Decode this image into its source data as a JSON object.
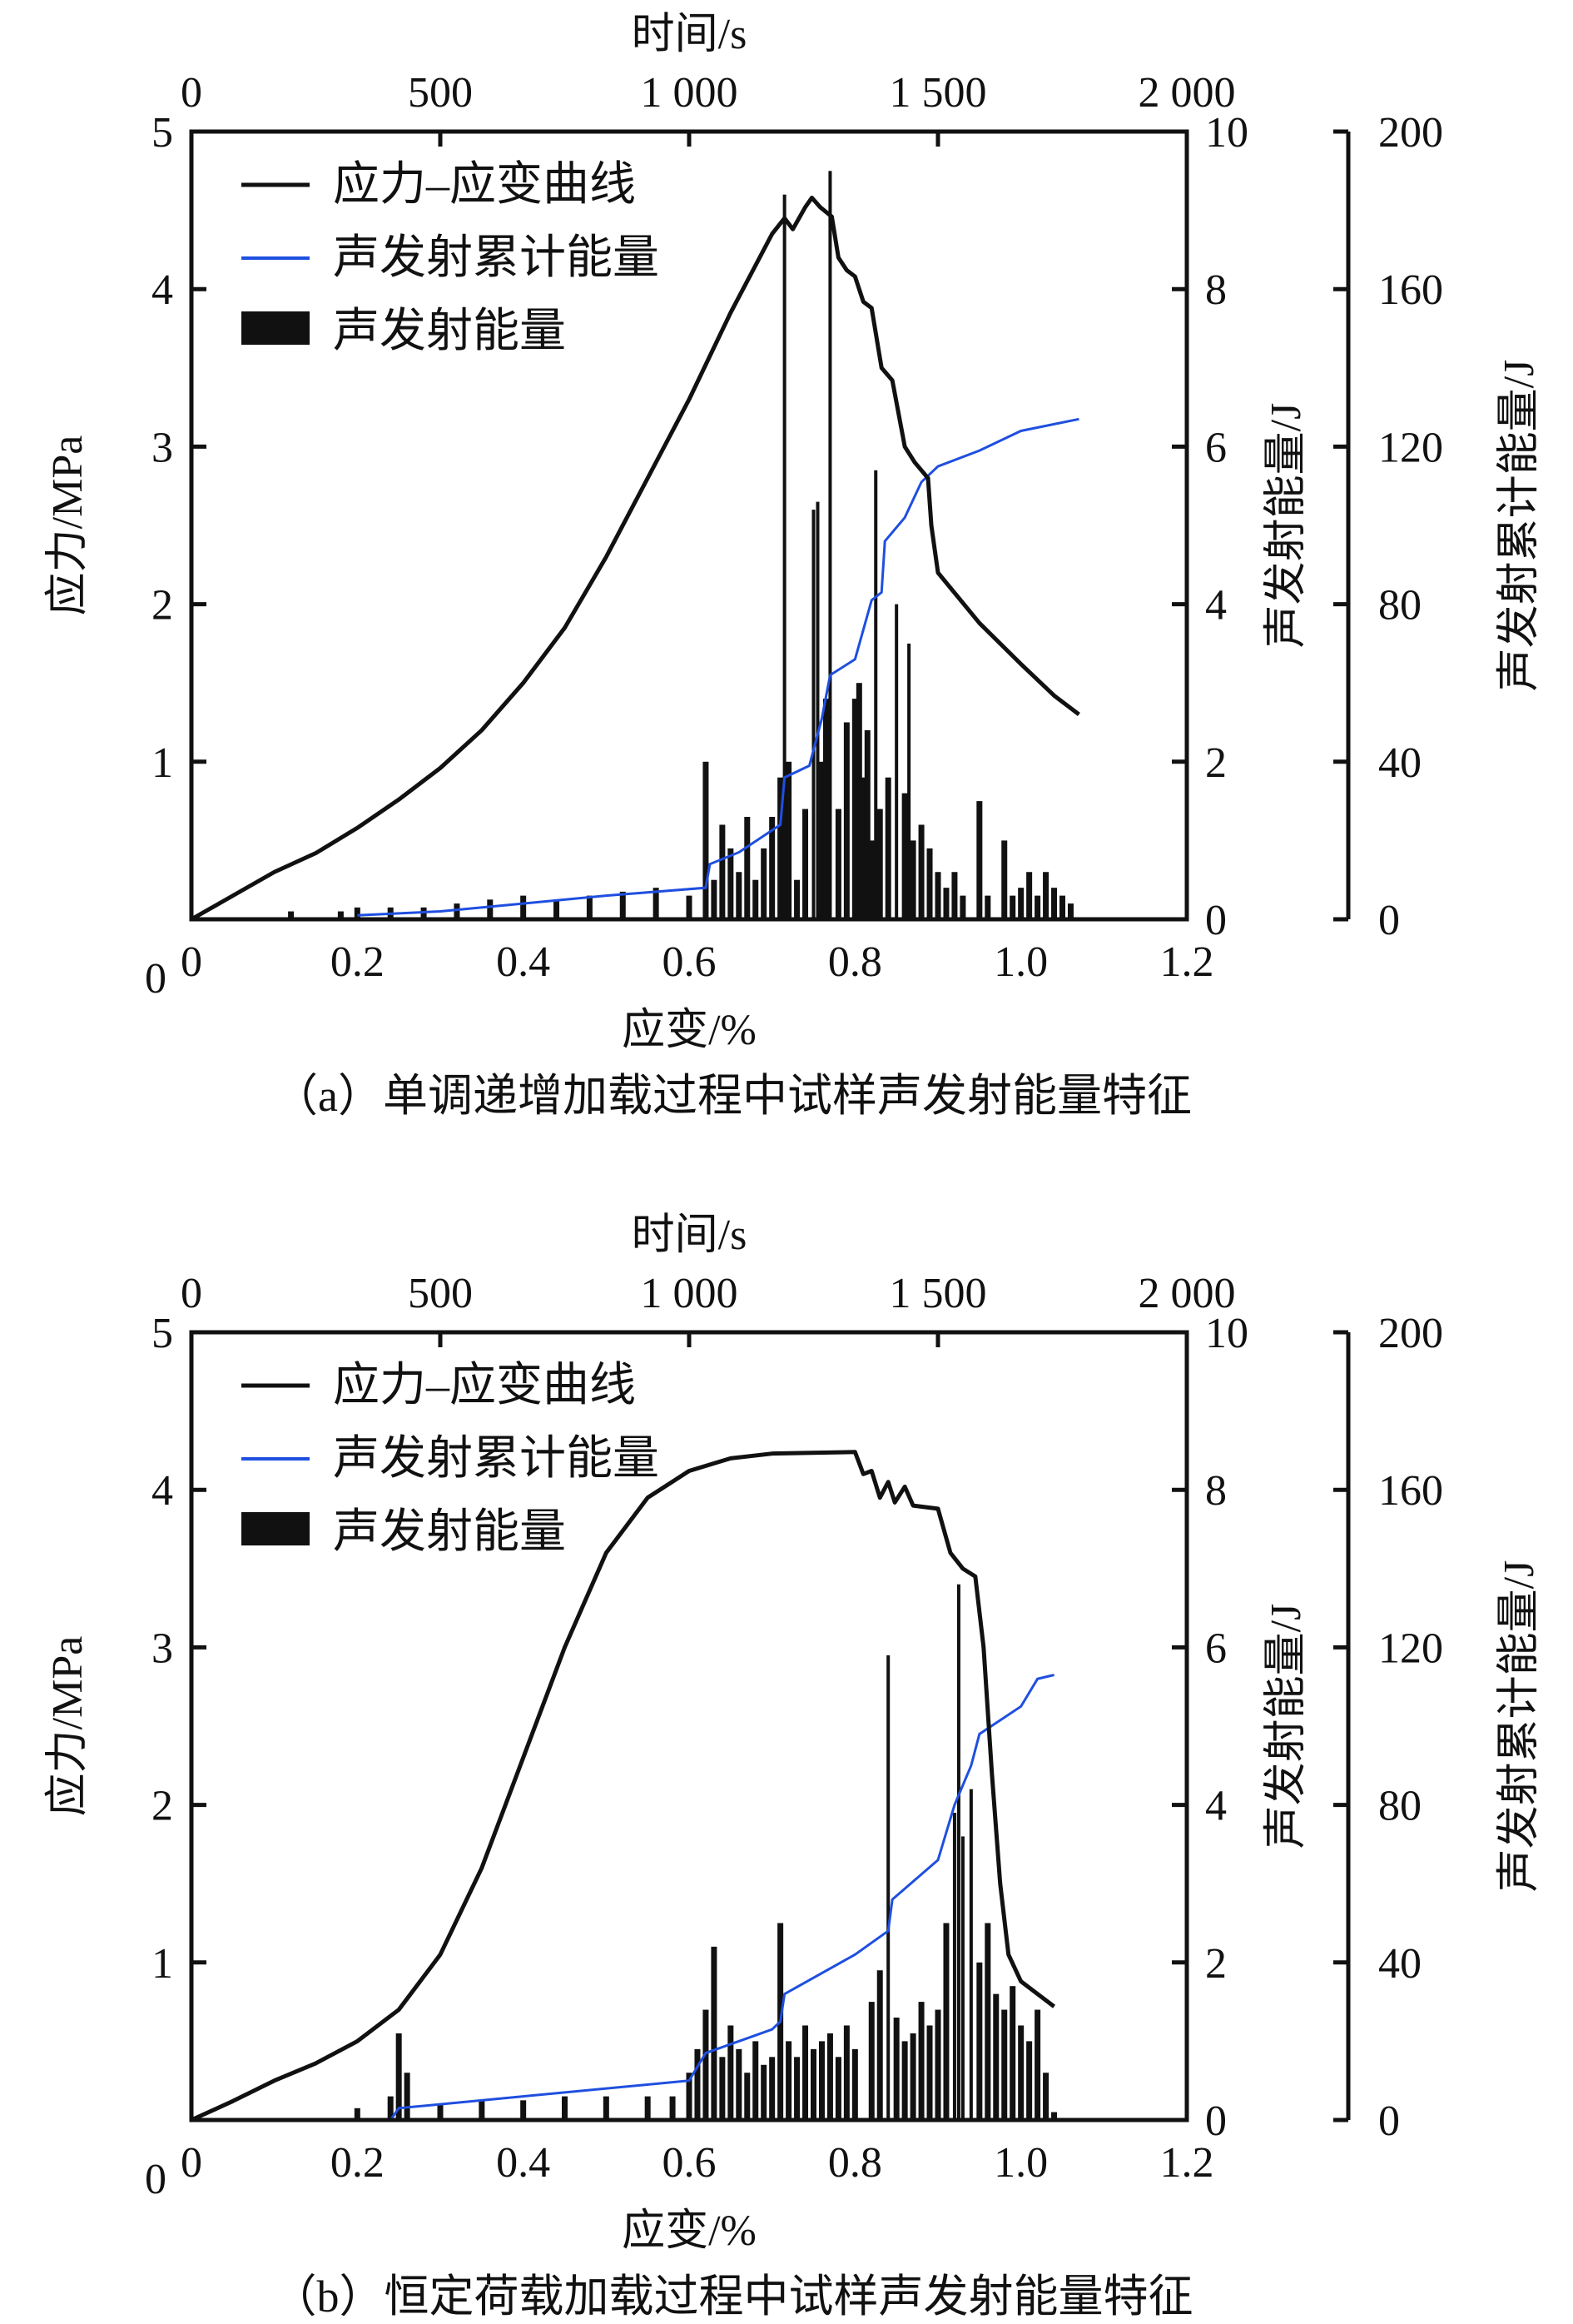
{
  "chart_data": [
    {
      "type": "line+bar",
      "caption": "（a）单调递增加载过程中试样声发射能量特征",
      "xlabel": "应变/%",
      "x2label": "时间/s",
      "ylabel": "应力/MPa",
      "y2label": "声发射能量/J",
      "y3label": "声发射累计能量/J",
      "xlim": [
        0,
        1.2
      ],
      "x2lim": [
        0,
        2000
      ],
      "ylim": [
        0,
        5
      ],
      "y2lim": [
        0,
        10
      ],
      "y3lim": [
        0,
        200
      ],
      "xticks": [
        "0",
        "0.2",
        "0.4",
        "0.6",
        "0.8",
        "1.0",
        "1.2"
      ],
      "x2ticks": [
        "0",
        "500",
        "1 000",
        "1 500",
        "2 000"
      ],
      "yticks": [
        "0",
        "1",
        "2",
        "3",
        "4",
        "5"
      ],
      "y2ticks": [
        "0",
        "2",
        "4",
        "6",
        "8",
        "10"
      ],
      "y3ticks": [
        "0",
        "40",
        "80",
        "120",
        "160",
        "200"
      ],
      "legend": [
        "应力–应变曲线",
        "声发射累计能量",
        "声发射能量"
      ],
      "legend_position": "top-left",
      "colors": {
        "stress": "#111111",
        "cumulative": "#1f4fe0",
        "energy": "#111111"
      },
      "stress_strain": [
        [
          0,
          0
        ],
        [
          0.05,
          0.15
        ],
        [
          0.1,
          0.3
        ],
        [
          0.15,
          0.42
        ],
        [
          0.2,
          0.58
        ],
        [
          0.25,
          0.76
        ],
        [
          0.3,
          0.96
        ],
        [
          0.35,
          1.2
        ],
        [
          0.4,
          1.5
        ],
        [
          0.45,
          1.85
        ],
        [
          0.5,
          2.3
        ],
        [
          0.55,
          2.8
        ],
        [
          0.6,
          3.3
        ],
        [
          0.65,
          3.85
        ],
        [
          0.7,
          4.35
        ],
        [
          0.715,
          4.45
        ],
        [
          0.725,
          4.38
        ],
        [
          0.74,
          4.52
        ],
        [
          0.748,
          4.58
        ],
        [
          0.758,
          4.52
        ],
        [
          0.772,
          4.46
        ],
        [
          0.78,
          4.2
        ],
        [
          0.79,
          4.12
        ],
        [
          0.8,
          4.08
        ],
        [
          0.81,
          3.92
        ],
        [
          0.82,
          3.88
        ],
        [
          0.832,
          3.5
        ],
        [
          0.845,
          3.42
        ],
        [
          0.86,
          3.0
        ],
        [
          0.872,
          2.9
        ],
        [
          0.888,
          2.8
        ],
        [
          0.892,
          2.5
        ],
        [
          0.9,
          2.2
        ],
        [
          0.95,
          1.88
        ],
        [
          1.0,
          1.62
        ],
        [
          1.04,
          1.42
        ],
        [
          1.07,
          1.3
        ]
      ],
      "cumulative_energy": [
        [
          0.2,
          1
        ],
        [
          0.3,
          2
        ],
        [
          0.4,
          4
        ],
        [
          0.5,
          6
        ],
        [
          0.62,
          8
        ],
        [
          0.625,
          14
        ],
        [
          0.66,
          17
        ],
        [
          0.71,
          24
        ],
        [
          0.715,
          36
        ],
        [
          0.745,
          39
        ],
        [
          0.76,
          51
        ],
        [
          0.77,
          62
        ],
        [
          0.8,
          66
        ],
        [
          0.82,
          81
        ],
        [
          0.832,
          83
        ],
        [
          0.836,
          96
        ],
        [
          0.86,
          102
        ],
        [
          0.88,
          111
        ],
        [
          0.9,
          115
        ],
        [
          0.95,
          119
        ],
        [
          1.0,
          124
        ],
        [
          1.07,
          127
        ]
      ],
      "ae_energy": [
        [
          0.12,
          0.1
        ],
        [
          0.18,
          0.1
        ],
        [
          0.2,
          0.15
        ],
        [
          0.24,
          0.15
        ],
        [
          0.28,
          0.15
        ],
        [
          0.32,
          0.2
        ],
        [
          0.36,
          0.25
        ],
        [
          0.4,
          0.3
        ],
        [
          0.44,
          0.25
        ],
        [
          0.48,
          0.3
        ],
        [
          0.52,
          0.35
        ],
        [
          0.56,
          0.4
        ],
        [
          0.6,
          0.3
        ],
        [
          0.62,
          2.0
        ],
        [
          0.63,
          0.5
        ],
        [
          0.64,
          1.2
        ],
        [
          0.65,
          0.9
        ],
        [
          0.66,
          0.6
        ],
        [
          0.67,
          1.3
        ],
        [
          0.68,
          0.5
        ],
        [
          0.69,
          0.9
        ],
        [
          0.7,
          1.3
        ],
        [
          0.71,
          1.8
        ],
        [
          0.715,
          9.2
        ],
        [
          0.72,
          2.0
        ],
        [
          0.73,
          0.5
        ],
        [
          0.74,
          1.4
        ],
        [
          0.75,
          5.2
        ],
        [
          0.755,
          5.3
        ],
        [
          0.76,
          2.0
        ],
        [
          0.765,
          2.8
        ],
        [
          0.77,
          9.5
        ],
        [
          0.78,
          1.4
        ],
        [
          0.79,
          2.5
        ],
        [
          0.8,
          2.8
        ],
        [
          0.805,
          3.0
        ],
        [
          0.81,
          1.8
        ],
        [
          0.815,
          2.4
        ],
        [
          0.82,
          1.0
        ],
        [
          0.825,
          5.7
        ],
        [
          0.83,
          1.4
        ],
        [
          0.84,
          1.8
        ],
        [
          0.85,
          4.0
        ],
        [
          0.86,
          1.6
        ],
        [
          0.865,
          3.5
        ],
        [
          0.87,
          1.0
        ],
        [
          0.88,
          1.2
        ],
        [
          0.89,
          0.9
        ],
        [
          0.9,
          0.6
        ],
        [
          0.91,
          0.4
        ],
        [
          0.92,
          0.6
        ],
        [
          0.93,
          0.3
        ],
        [
          0.95,
          1.5
        ],
        [
          0.96,
          0.3
        ],
        [
          0.98,
          1.0
        ],
        [
          0.99,
          0.3
        ],
        [
          1.0,
          0.4
        ],
        [
          1.01,
          0.6
        ],
        [
          1.02,
          0.3
        ],
        [
          1.03,
          0.6
        ],
        [
          1.04,
          0.4
        ],
        [
          1.05,
          0.3
        ],
        [
          1.06,
          0.2
        ]
      ]
    },
    {
      "type": "line+bar",
      "caption": "（b）恒定荷载加载过程中试样声发射能量特征",
      "xlabel": "应变/%",
      "x2label": "时间/s",
      "ylabel": "应力/MPa",
      "y2label": "声发射能量/J",
      "y3label": "声发射累计能量/J",
      "xlim": [
        0,
        1.2
      ],
      "x2lim": [
        0,
        2000
      ],
      "ylim": [
        0,
        5
      ],
      "y2lim": [
        0,
        10
      ],
      "y3lim": [
        0,
        200
      ],
      "xticks": [
        "0",
        "0.2",
        "0.4",
        "0.6",
        "0.8",
        "1.0",
        "1.2"
      ],
      "x2ticks": [
        "0",
        "500",
        "1 000",
        "1 500",
        "2 000"
      ],
      "yticks": [
        "0",
        "1",
        "2",
        "3",
        "4",
        "5"
      ],
      "y2ticks": [
        "0",
        "2",
        "4",
        "6",
        "8",
        "10"
      ],
      "y3ticks": [
        "0",
        "40",
        "80",
        "120",
        "160",
        "200"
      ],
      "legend": [
        "应力–应变曲线",
        "声发射累计能量",
        "声发射能量"
      ],
      "legend_position": "top-left",
      "colors": {
        "stress": "#111111",
        "cumulative": "#1f4fe0",
        "energy": "#111111"
      },
      "stress_strain": [
        [
          0,
          0
        ],
        [
          0.05,
          0.12
        ],
        [
          0.1,
          0.25
        ],
        [
          0.15,
          0.36
        ],
        [
          0.2,
          0.5
        ],
        [
          0.25,
          0.7
        ],
        [
          0.3,
          1.05
        ],
        [
          0.35,
          1.6
        ],
        [
          0.4,
          2.3
        ],
        [
          0.45,
          3.0
        ],
        [
          0.5,
          3.6
        ],
        [
          0.55,
          3.95
        ],
        [
          0.6,
          4.12
        ],
        [
          0.65,
          4.2
        ],
        [
          0.7,
          4.23
        ],
        [
          0.8,
          4.24
        ],
        [
          0.81,
          4.1
        ],
        [
          0.82,
          4.12
        ],
        [
          0.83,
          3.95
        ],
        [
          0.84,
          4.05
        ],
        [
          0.848,
          3.92
        ],
        [
          0.86,
          4.02
        ],
        [
          0.87,
          3.9
        ],
        [
          0.9,
          3.88
        ],
        [
          0.915,
          3.6
        ],
        [
          0.93,
          3.5
        ],
        [
          0.945,
          3.45
        ],
        [
          0.955,
          3.0
        ],
        [
          0.965,
          2.2
        ],
        [
          0.975,
          1.5
        ],
        [
          0.985,
          1.05
        ],
        [
          1.0,
          0.88
        ],
        [
          1.04,
          0.72
        ]
      ],
      "cumulative_energy": [
        [
          0.24,
          0
        ],
        [
          0.25,
          3
        ],
        [
          0.4,
          6
        ],
        [
          0.6,
          10
        ],
        [
          0.62,
          17
        ],
        [
          0.7,
          23
        ],
        [
          0.71,
          25
        ],
        [
          0.715,
          32
        ],
        [
          0.8,
          42
        ],
        [
          0.84,
          48
        ],
        [
          0.845,
          56
        ],
        [
          0.9,
          66
        ],
        [
          0.92,
          80
        ],
        [
          0.94,
          90
        ],
        [
          0.95,
          98
        ],
        [
          1.0,
          105
        ],
        [
          1.02,
          112
        ],
        [
          1.04,
          113
        ]
      ],
      "ae_energy": [
        [
          0.2,
          0.15
        ],
        [
          0.24,
          0.3
        ],
        [
          0.25,
          1.1
        ],
        [
          0.26,
          0.6
        ],
        [
          0.3,
          0.2
        ],
        [
          0.35,
          0.25
        ],
        [
          0.4,
          0.25
        ],
        [
          0.45,
          0.3
        ],
        [
          0.5,
          0.3
        ],
        [
          0.55,
          0.3
        ],
        [
          0.58,
          0.3
        ],
        [
          0.6,
          0.6
        ],
        [
          0.61,
          0.9
        ],
        [
          0.62,
          1.4
        ],
        [
          0.63,
          2.2
        ],
        [
          0.64,
          0.8
        ],
        [
          0.65,
          1.2
        ],
        [
          0.66,
          0.9
        ],
        [
          0.67,
          0.6
        ],
        [
          0.68,
          1.0
        ],
        [
          0.69,
          0.7
        ],
        [
          0.7,
          0.8
        ],
        [
          0.71,
          2.5
        ],
        [
          0.72,
          1.0
        ],
        [
          0.73,
          0.8
        ],
        [
          0.74,
          1.2
        ],
        [
          0.75,
          0.9
        ],
        [
          0.76,
          1.0
        ],
        [
          0.77,
          1.1
        ],
        [
          0.78,
          0.8
        ],
        [
          0.79,
          1.2
        ],
        [
          0.8,
          0.9
        ],
        [
          0.82,
          1.5
        ],
        [
          0.83,
          1.9
        ],
        [
          0.84,
          5.9
        ],
        [
          0.85,
          1.3
        ],
        [
          0.86,
          1.0
        ],
        [
          0.87,
          1.1
        ],
        [
          0.88,
          1.5
        ],
        [
          0.89,
          1.2
        ],
        [
          0.9,
          1.4
        ],
        [
          0.91,
          2.5
        ],
        [
          0.92,
          3.9
        ],
        [
          0.925,
          6.8
        ],
        [
          0.93,
          3.6
        ],
        [
          0.94,
          4.2
        ],
        [
          0.95,
          2.0
        ],
        [
          0.96,
          2.5
        ],
        [
          0.97,
          1.6
        ],
        [
          0.98,
          1.4
        ],
        [
          0.99,
          1.7
        ],
        [
          1.0,
          1.2
        ],
        [
          1.01,
          1.0
        ],
        [
          1.02,
          1.4
        ],
        [
          1.03,
          0.6
        ],
        [
          1.04,
          0.1
        ]
      ]
    }
  ]
}
